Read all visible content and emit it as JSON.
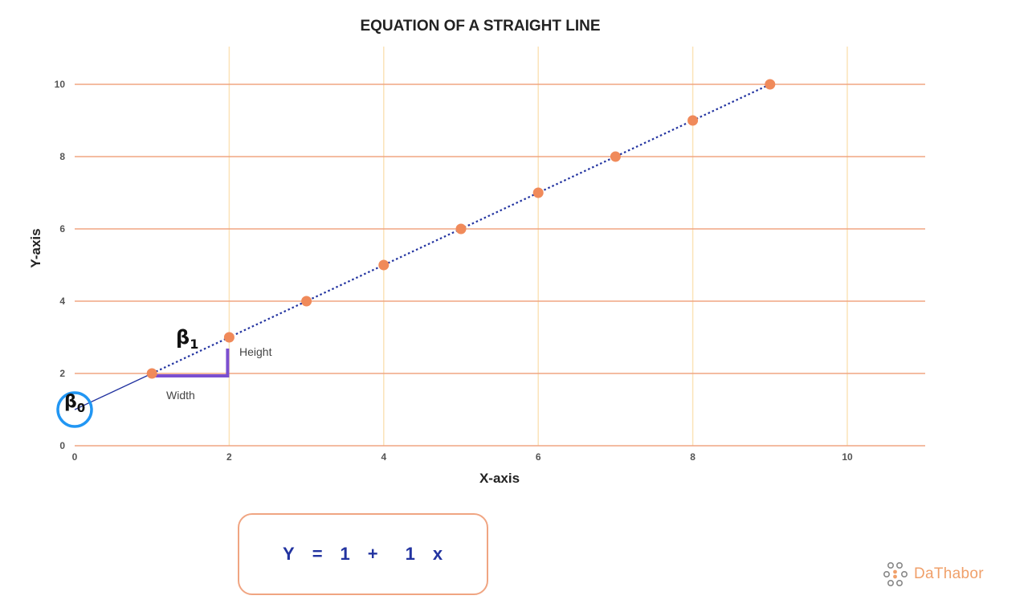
{
  "chart_data": {
    "type": "scatter",
    "title": "EQUATION OF A STRAIGHT LINE",
    "xlabel": "X-axis",
    "ylabel": "Y-axis",
    "xlim": [
      0,
      11
    ],
    "ylim": [
      0,
      11
    ],
    "xticks": [
      0,
      2,
      4,
      6,
      8,
      10
    ],
    "yticks": [
      0,
      2,
      4,
      6,
      8,
      10
    ],
    "grid": true,
    "series": [
      {
        "x": [
          1,
          2,
          3,
          4,
          5,
          6,
          7,
          8,
          9
        ],
        "y": [
          2,
          3,
          4,
          5,
          6,
          7,
          8,
          9,
          10
        ]
      }
    ],
    "regression_line": {
      "x0": 0,
      "y0": 1,
      "x1": 9,
      "y1": 10
    },
    "annotations": {
      "intercept_label": "β",
      "intercept_subscript": "0",
      "slope_label": "β",
      "slope_subscript": "1",
      "height_label": "Height",
      "width_label": "Width"
    },
    "colors": {
      "point": "#f08a5a",
      "line": "#2233a0",
      "horizontal_grid": "#f0a582",
      "vertical_grid": "#fbe3b8",
      "slope_bracket": "#7b4fd0",
      "intercept_circle": "#2196f3"
    }
  },
  "equation": {
    "y": "Y",
    "equals": "=",
    "intercept": "1",
    "plus": "+",
    "slope": "1",
    "x": "x"
  },
  "logo": {
    "text": "DaThabor"
  }
}
